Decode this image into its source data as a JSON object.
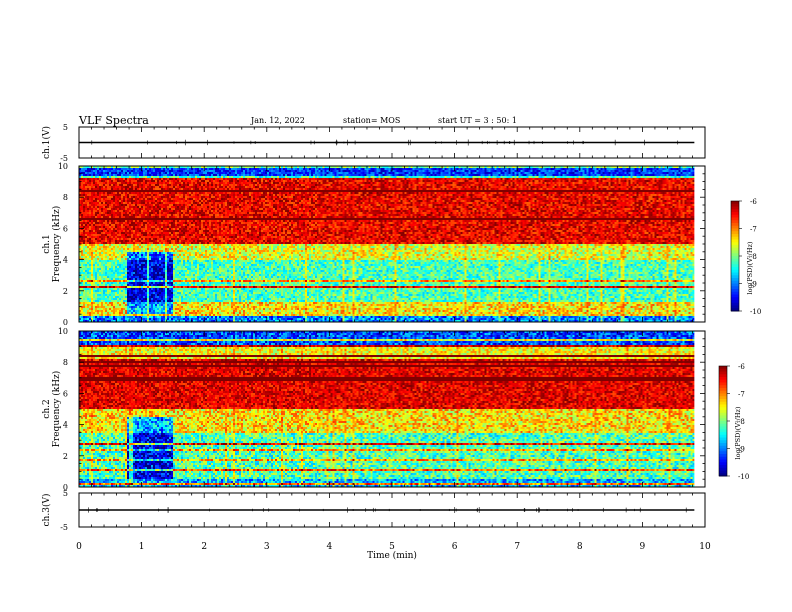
{
  "header": {
    "title": "VLF Spectra",
    "date": "Jan. 12, 2022",
    "station": "station= MOS",
    "start": "start UT =  3 : 50: 1"
  },
  "chart_data": [
    {
      "type": "line",
      "panel": "waveform-ch1",
      "ylabel": "ch.1(V)",
      "ylim": [
        -5,
        5
      ],
      "yticks": [
        "5",
        "-5"
      ],
      "series": [
        {
          "x": [
            0,
            9.83
          ],
          "y": [
            0,
            0
          ]
        }
      ]
    },
    {
      "type": "heatmap",
      "panel": "spectrogram-ch1",
      "ylabel": "ch.1\nFrequency (kHz)",
      "ylim": [
        0,
        10
      ],
      "yticks": [
        "0",
        "2",
        "4",
        "6",
        "8",
        "10"
      ],
      "data_xlim": [
        0,
        9.83
      ],
      "colorbar": {
        "label": "log(PSD)(V²/Hz)",
        "range": [
          -10,
          -6
        ],
        "ticks": [
          "-6",
          "-7",
          "-8",
          "-9",
          "-10"
        ],
        "colormap": "jet"
      }
    },
    {
      "type": "heatmap",
      "panel": "spectrogram-ch2",
      "ylabel": "ch.2\nFrequency (kHz)",
      "ylim": [
        0,
        10
      ],
      "yticks": [
        "0",
        "2",
        "4",
        "6",
        "8",
        "10"
      ],
      "data_xlim": [
        0,
        9.83
      ],
      "colorbar": {
        "label": "log(PSD)(V²/Hz)",
        "range": [
          -10,
          -6
        ],
        "ticks": [
          "-6",
          "-7",
          "-8",
          "-9",
          "-10"
        ],
        "colormap": "jet"
      }
    },
    {
      "type": "line",
      "panel": "waveform-ch3",
      "ylabel": "ch.3(V)",
      "ylim": [
        -5,
        5
      ],
      "yticks": [
        "5",
        "-5"
      ],
      "series": [
        {
          "x": [
            0,
            9.83
          ],
          "y": [
            0,
            0
          ]
        }
      ]
    }
  ],
  "xaxis": {
    "label": "Time (min)",
    "xlim": [
      0,
      10
    ],
    "ticks": [
      "0",
      "1",
      "2",
      "3",
      "4",
      "5",
      "6",
      "7",
      "8",
      "9",
      "10"
    ]
  }
}
